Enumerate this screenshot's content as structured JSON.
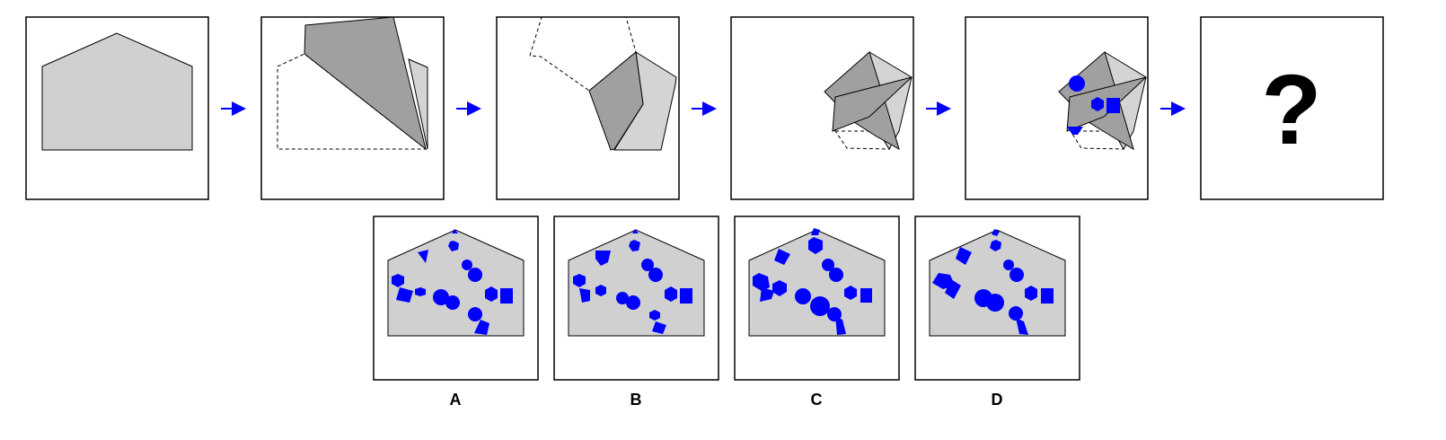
{
  "sequence": {
    "question_mark": "?",
    "colors": {
      "paper": "#d0d0d0",
      "fold_dark": "#a0a0a0",
      "fold_light": "#d4d4d4",
      "hole": "#0000ff",
      "arrow": "#0000ff"
    }
  },
  "options": {
    "a": {
      "label": "A"
    },
    "b": {
      "label": "B"
    },
    "c": {
      "label": "C"
    },
    "d": {
      "label": "D"
    }
  }
}
